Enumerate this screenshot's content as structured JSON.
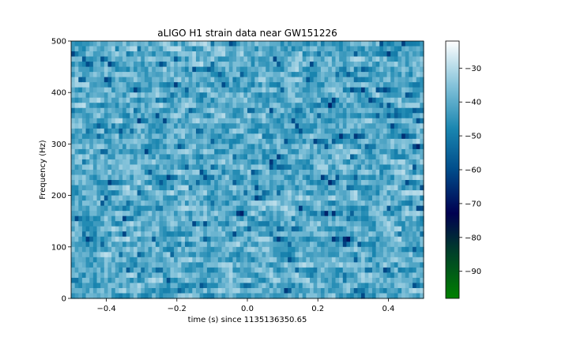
{
  "chart_data": {
    "type": "heatmap",
    "title": "aLIGO H1 strain data near GW151226",
    "xlabel": "time (s) since 1135136350.65",
    "ylabel": "Frequency (Hz)",
    "xlim": [
      -0.5,
      0.5
    ],
    "ylim": [
      0,
      500
    ],
    "x_ticks": [
      -0.4,
      -0.2,
      0.0,
      0.2,
      0.4
    ],
    "x_tick_labels": [
      "−0.4",
      "−0.2",
      "0.0",
      "0.2",
      "0.4"
    ],
    "y_ticks": [
      0,
      100,
      200,
      300,
      400,
      500
    ],
    "y_tick_labels": [
      "0",
      "100",
      "200",
      "300",
      "400",
      "500"
    ],
    "colormap": "ocean",
    "colorbar": {
      "range": [
        -98,
        -22
      ],
      "ticks": [
        -30,
        -40,
        -50,
        -60,
        -70,
        -80,
        -90
      ],
      "tick_labels": [
        "−30",
        "−40",
        "−50",
        "−60",
        "−70",
        "−80",
        "−90"
      ]
    },
    "grid": false,
    "time_bins": 96,
    "frequency_bins": 50,
    "value_model": "noise spectrogram, values mostly between -55 and -25 dB"
  }
}
